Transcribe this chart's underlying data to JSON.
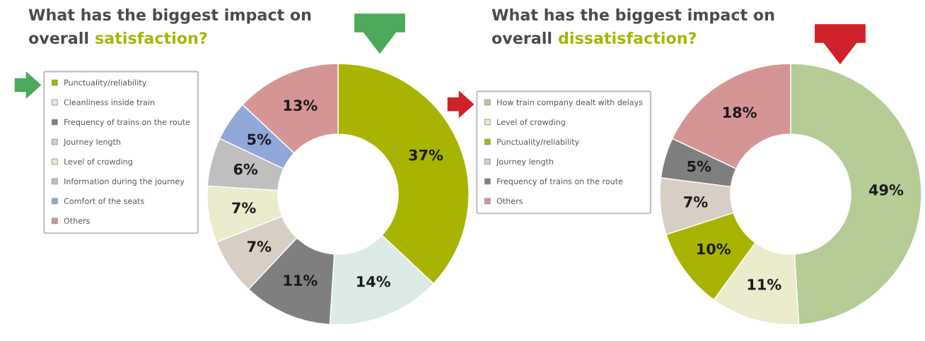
{
  "chart_data": [
    {
      "type": "donut",
      "title": "What has the biggest impact on\noverall satisfaction?",
      "categories": [
        "Punctuality/reliability",
        "Cleanliness inside train",
        "Frequency of trains on the route",
        "Journey length",
        "Level of crowding",
        "Information during the journey",
        "Comfort of the seats",
        "Others"
      ],
      "values": [
        37,
        14,
        11,
        7,
        7,
        6,
        5,
        13
      ],
      "value_labels": [
        "37%",
        "14%",
        "11%",
        "7%",
        "7%",
        "6%",
        "5%",
        "13%"
      ],
      "colors": [
        "#a8b400",
        "#dcebe6",
        "#7f7f7f",
        "#d8cfc4",
        "#eaeccc",
        "#bfbfbf",
        "#8fa8d8",
        "#d69595"
      ],
      "legend": "left"
    },
    {
      "type": "donut",
      "title": "What has the biggest impact on\noverall dissatisfaction?",
      "categories": [
        "How train company dealt with delays",
        "Level of crowding",
        "Punctuality/reliability",
        "Journey length",
        "Frequency of trains on the route",
        "Others"
      ],
      "values": [
        49,
        11,
        10,
        7,
        5,
        18
      ],
      "value_labels": [
        "49%",
        "11%",
        "10%",
        "7%",
        "5%",
        "18%"
      ],
      "colors": [
        "#b5cc94",
        "#eaeccc",
        "#a8b400",
        "#d8cfc4",
        "#7f7f7f",
        "#d69595"
      ],
      "legend": "left"
    }
  ]
}
